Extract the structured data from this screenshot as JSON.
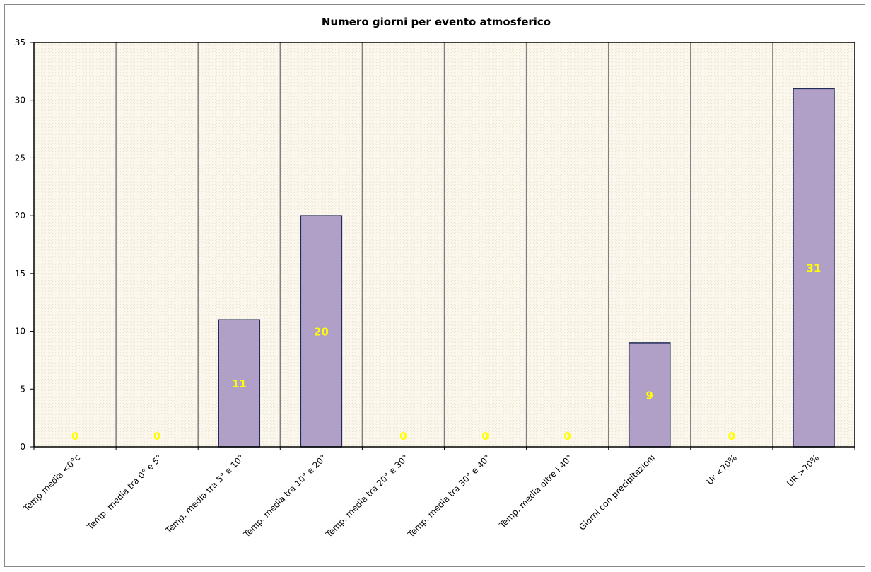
{
  "chart_data": {
    "type": "bar",
    "title": "Numero giorni  per evento atmosferico",
    "categories": [
      "Temp media <0°c",
      "Temp. media tra 0° e 5°",
      "Temp. media tra 5° e 10°",
      "Temp. media tra 10° e 20°",
      "Temp. media tra 20° e 30°",
      "Temp. media tra 30° e 40°",
      "Temp. media oltre i 40°",
      "Giorni con precipitazioni",
      "Ur  <70%",
      "UR >70%"
    ],
    "values": [
      0,
      0,
      11,
      20,
      0,
      0,
      0,
      9,
      0,
      31
    ],
    "data_labels": [
      "0",
      "0",
      "11",
      "20",
      "0",
      "0",
      "0",
      "9",
      "0",
      "31"
    ],
    "xlabel": "",
    "ylabel": "",
    "ylim": [
      0,
      35
    ],
    "yticks": [
      "0",
      "5",
      "10",
      "15",
      "20",
      "25",
      "30",
      "35"
    ],
    "grid": "vertical",
    "legend": "none",
    "colors": {
      "bar_fill": "#b0a0c8",
      "bar_stroke": "#1f2a55",
      "plot_background": "#fcf7ec",
      "gridline": "#808080",
      "data_label": "#ffff00"
    }
  }
}
